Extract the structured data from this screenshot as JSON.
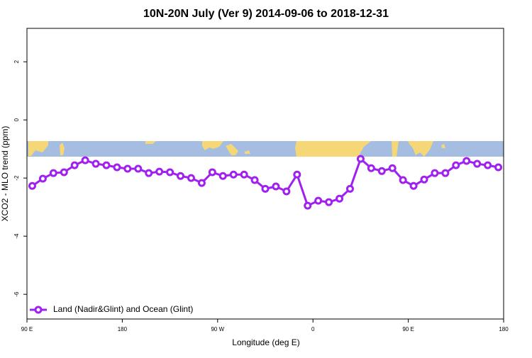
{
  "chart_data": {
    "type": "line",
    "title": "10N-20N July (Ver 9)   2014-09-06 to 2018-12-31",
    "xlabel": "Longitude (deg E)",
    "ylabel": "XCO2 - MLO trend (ppm)",
    "x": [
      95,
      105,
      115,
      125,
      135,
      145,
      155,
      165,
      175,
      185,
      195,
      205,
      215,
      225,
      235,
      245,
      255,
      265,
      275,
      285,
      295,
      305,
      315,
      325,
      335,
      345,
      355,
      365,
      375,
      385,
      395,
      405,
      415,
      425,
      435,
      445,
      455,
      465,
      475,
      485,
      495,
      505,
      515,
      525,
      535
    ],
    "series": [
      {
        "name": "Land (Nadir&Glint) and Ocean (Glint)",
        "color": "#a020f0",
        "values": [
          -2.27,
          -2.02,
          -1.83,
          -1.8,
          -1.56,
          -1.39,
          -1.51,
          -1.56,
          -1.63,
          -1.68,
          -1.68,
          -1.83,
          -1.78,
          -1.8,
          -1.93,
          -2.0,
          -2.17,
          -1.8,
          -1.93,
          -1.88,
          -1.88,
          -2.07,
          -2.37,
          -2.29,
          -2.46,
          -1.88,
          -2.95,
          -2.78,
          -2.83,
          -2.71,
          -2.37,
          -1.34,
          -1.66,
          -1.76,
          -1.66,
          -2.07,
          -2.27,
          -2.05,
          -1.83,
          -1.83,
          -1.56,
          -1.41,
          -1.51,
          -1.56,
          -1.63
        ]
      }
    ],
    "xlim": [
      90,
      540
    ],
    "xticks": [
      {
        "value": 90,
        "label": "90 E"
      },
      {
        "value": 180,
        "label": "180"
      },
      {
        "value": 270,
        "label": "90 W"
      },
      {
        "value": 360,
        "label": "0"
      },
      {
        "value": 450,
        "label": "90 E"
      },
      {
        "value": 540,
        "label": "180"
      }
    ],
    "ylim": [
      -6.85,
      3.15
    ],
    "yticks": [
      2,
      0,
      -2,
      -4,
      -6
    ],
    "legend": "bottom-left"
  }
}
